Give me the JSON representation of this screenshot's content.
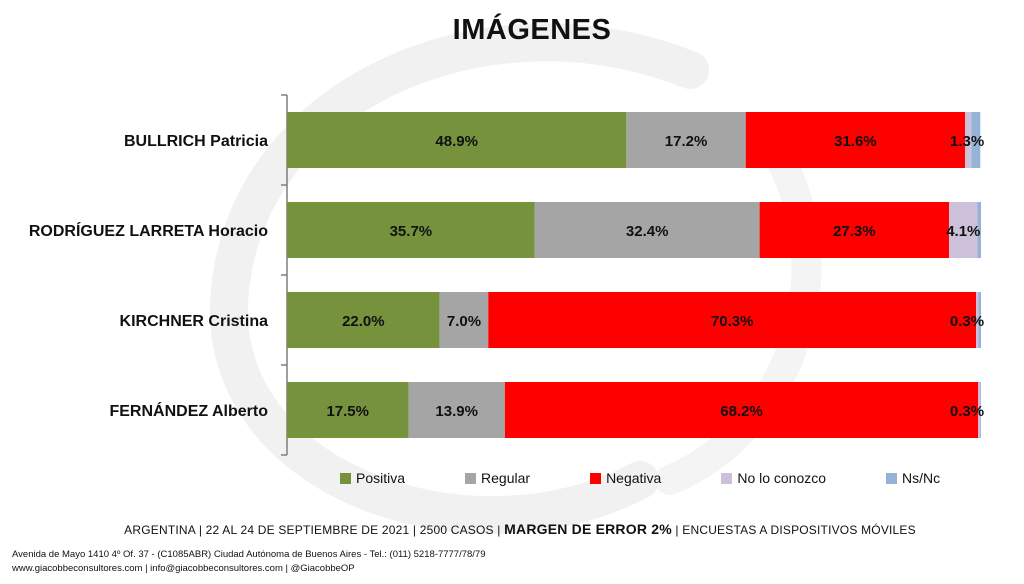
{
  "title": "IMÁGENES",
  "colors": {
    "positiva": "#76923C",
    "regular": "#A5A5A5",
    "negativa": "#FF0000",
    "no_lo_conozco": "#CCC0DA",
    "nsnc": "#95B3D7"
  },
  "legend": [
    "Positiva",
    "Regular",
    "Negativa",
    "No lo conozco",
    "Ns/Nc"
  ],
  "chart_data": {
    "type": "bar",
    "orientation": "horizontal",
    "stacked": true,
    "categories": [
      "BULLRICH Patricia",
      "RODRÍGUEZ LARRETA Horacio",
      "KIRCHNER Cristina",
      "FERNÁNDEZ Alberto"
    ],
    "series": [
      {
        "name": "Positiva",
        "values": [
          48.9,
          35.7,
          22.0,
          17.5
        ]
      },
      {
        "name": "Regular",
        "values": [
          17.2,
          32.4,
          7.0,
          13.9
        ]
      },
      {
        "name": "Negativa",
        "values": [
          31.6,
          27.3,
          70.3,
          68.2
        ]
      },
      {
        "name": "No lo conozco",
        "values": [
          0.9,
          4.1,
          0.3,
          0.3
        ]
      },
      {
        "name": "Ns/Nc",
        "values": [
          1.3,
          0.5,
          0.4,
          0.1
        ]
      }
    ],
    "data_labels": [
      [
        "48.9%",
        "17.2%",
        "31.6%",
        "",
        "1.3%"
      ],
      [
        "35.7%",
        "32.4%",
        "27.3%",
        "4.1%",
        ""
      ],
      [
        "22.0%",
        "7.0%",
        "70.3%",
        "0.3%",
        ""
      ],
      [
        "17.5%",
        "13.9%",
        "68.2%",
        "0.3%",
        ""
      ]
    ],
    "xlim": [
      0,
      100
    ],
    "grid": false,
    "legend_position": "bottom"
  },
  "footer": {
    "line_pre": "ARGENTINA | 22 AL 24 DE SEPTIEMBRE DE 2021 | 2500 CASOS | ",
    "line_bold": "MARGEN DE ERROR 2%",
    "line_post": " | ENCUESTAS A DISPOSITIVOS MÓVILES",
    "address": "Avenida de Mayo 1410 4º Of. 37 - (C1085ABR) Ciudad Autónoma de Buenos Aires - Tel.: (011) 5218-7777/78/79",
    "contact": "www.giacobbeconsultores.com | info@giacobbeconsultores.com | @GiacobbeOP"
  }
}
